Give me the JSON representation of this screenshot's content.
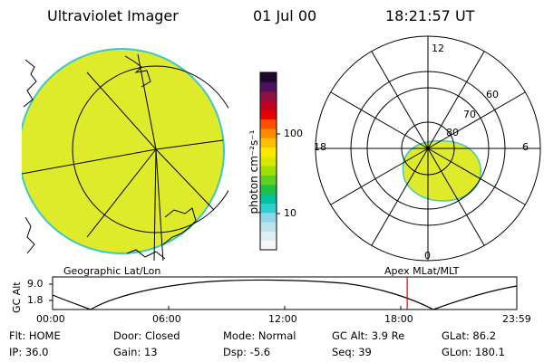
{
  "header": {
    "title": "Ultraviolet Imager",
    "date": "01 Jul 00",
    "time": "18:21:57 UT"
  },
  "colorbar": {
    "unit_label": "photon cm⁻²s⁻¹",
    "tick_high": "100",
    "tick_low": "10",
    "colors": [
      "#f6f6f6",
      "#dfeef3",
      "#bfe3ee",
      "#8fd6e6",
      "#2fd0d0",
      "#00c0a0",
      "#20c040",
      "#60d020",
      "#a0e000",
      "#d8e800",
      "#ffe800",
      "#ffc000",
      "#ff8c00",
      "#ff5000",
      "#e80000",
      "#c00020",
      "#901040",
      "#501060",
      "#200830"
    ]
  },
  "left_panel": {
    "label": "Geographic Lat/Lon",
    "fill_color": "#dfea2a"
  },
  "right_panel": {
    "label": "Apex MLat/MLT",
    "mlt_labels": {
      "top": "12",
      "bottom": "0",
      "left": "18",
      "right": "6"
    },
    "lat_labels": [
      "60",
      "70",
      "80"
    ]
  },
  "altitude_plot": {
    "ylabel": "GC Alt",
    "yticks": [
      "9.0",
      "1.8"
    ],
    "xticks": [
      "00:00",
      "06:00",
      "12:00",
      "18:00",
      "23:59"
    ],
    "marker_fraction": 0.7639
  },
  "info": {
    "flt_label": "Flt: HOME",
    "door_label": "Door: Closed",
    "mode_label": "Mode: Normal",
    "gcalt_label": "GC Alt: 3.9 Re",
    "glat_label": "GLat: 86.2",
    "ip_label": "IP: 36.0",
    "gain_label": "Gain: 13",
    "dsp_label": "Dsp:   -5.6",
    "seq_label": "Seq: 39",
    "glon_label": "GLon: 180.1"
  }
}
